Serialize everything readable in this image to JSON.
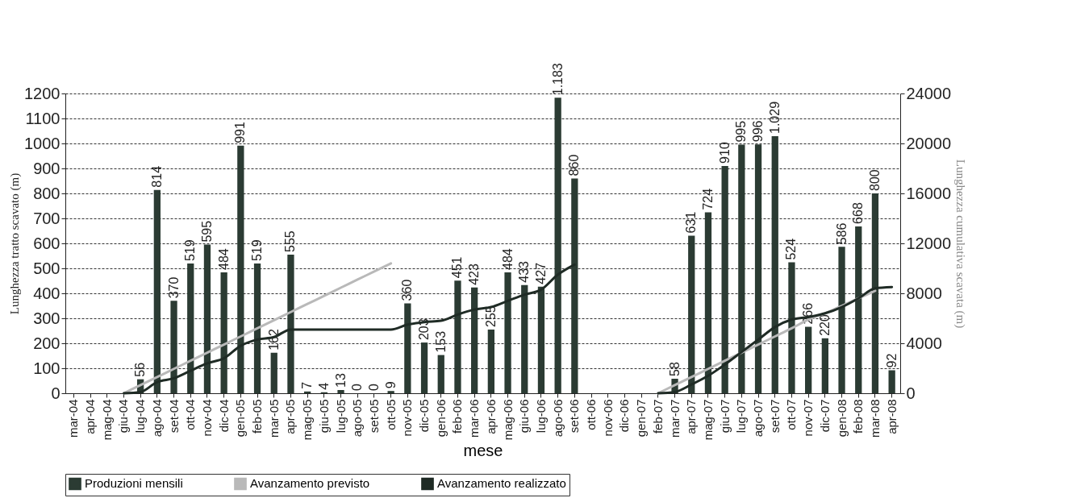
{
  "chart_data": {
    "type": "bar",
    "categories": [
      "mar-04",
      "apr-04",
      "mag-04",
      "giu-04",
      "lug-04",
      "ago-04",
      "set-04",
      "ott-04",
      "nov-04",
      "dic-04",
      "gen-05",
      "feb-05",
      "mar-05",
      "apr-05",
      "mag-05",
      "giu-05",
      "lug-05",
      "ago-05",
      "set-05",
      "ott-05",
      "nov-05",
      "dic-05",
      "gen-06",
      "feb-06",
      "mar-06",
      "apr-06",
      "mag-06",
      "giu-06",
      "lug-06",
      "ago-06",
      "set-06",
      "ott-06",
      "nov-06",
      "dic-06",
      "gen-07",
      "feb-07",
      "mar-07",
      "apr-07",
      "mag-07",
      "giu-07",
      "lug-07",
      "ago-07",
      "set-07",
      "ott-07",
      "nov-07",
      "dic-07",
      "gen-08",
      "feb-08",
      "mar-08",
      "apr-08"
    ],
    "series": [
      {
        "name": "Produzioni mensili",
        "color": "#2b3b33",
        "values": [
          null,
          null,
          null,
          null,
          56,
          814,
          370,
          519,
          595,
          484,
          991,
          519,
          162,
          555,
          7,
          4,
          13,
          0,
          0,
          9,
          360,
          203,
          153,
          451,
          423,
          255,
          484,
          433,
          427,
          1183,
          860,
          null,
          null,
          null,
          null,
          null,
          58,
          631,
          724,
          910,
          995,
          996,
          1029,
          524,
          266,
          220,
          586,
          668,
          800,
          92
        ],
        "value_labels": [
          null,
          null,
          null,
          null,
          "56",
          "814",
          "370",
          "519",
          "595",
          "484",
          "991",
          "519",
          "162",
          "555",
          "7",
          "4",
          "13",
          "0",
          "0",
          "9",
          "360",
          "203",
          "153",
          "451",
          "423",
          "255",
          "484",
          "433",
          "427",
          "1.183",
          "860",
          null,
          null,
          null,
          null,
          null,
          "58",
          "631",
          "724",
          "910",
          "995",
          "996",
          "1.029",
          "524",
          "266",
          "220",
          "586",
          "668",
          "800",
          "92"
        ]
      },
      {
        "name": "Avanzamento previsto",
        "type": "line",
        "axis": "y2",
        "color": "#b9b9b9",
        "values": [
          null,
          null,
          null,
          0,
          650,
          1300,
          1950,
          2600,
          3250,
          3900,
          4550,
          5200,
          5850,
          6500,
          7150,
          7800,
          8450,
          9100,
          9750,
          10400,
          null,
          null,
          null,
          null,
          null,
          null,
          null,
          null,
          null,
          null,
          null,
          null,
          null,
          null,
          null,
          0,
          650,
          1300,
          1950,
          2600,
          3250,
          3900,
          4550,
          5200,
          5900,
          6400,
          7000,
          7600,
          8200,
          null
        ]
      },
      {
        "name": "Avanzamento realizzato",
        "type": "line",
        "axis": "y2",
        "color": "#1f2b25",
        "values": [
          null,
          null,
          null,
          0,
          100,
          900,
          1200,
          1800,
          2400,
          2800,
          3800,
          4300,
          4500,
          5100,
          5100,
          5100,
          5100,
          5100,
          5100,
          5100,
          5500,
          5700,
          5800,
          6300,
          6700,
          6900,
          7400,
          7900,
          8300,
          9500,
          10300,
          null,
          null,
          null,
          null,
          0,
          100,
          700,
          1400,
          2300,
          3300,
          4300,
          5300,
          5900,
          6100,
          6400,
          6900,
          7600,
          8400,
          8500
        ]
      }
    ],
    "xlabel": "mese",
    "ylabel": "Lunghezza tratto scavato (m)",
    "y2label": "Lunghezza cumulativa scavata (m)",
    "ylim": [
      0,
      1200
    ],
    "yticks": [
      0,
      100,
      200,
      300,
      400,
      500,
      600,
      700,
      800,
      900,
      1000,
      1100,
      1200
    ],
    "y2lim": [
      0,
      24000
    ],
    "y2ticks": [
      0,
      4000,
      8000,
      12000,
      16000,
      20000,
      24000
    ],
    "grid": "y",
    "legend": "bottom"
  }
}
